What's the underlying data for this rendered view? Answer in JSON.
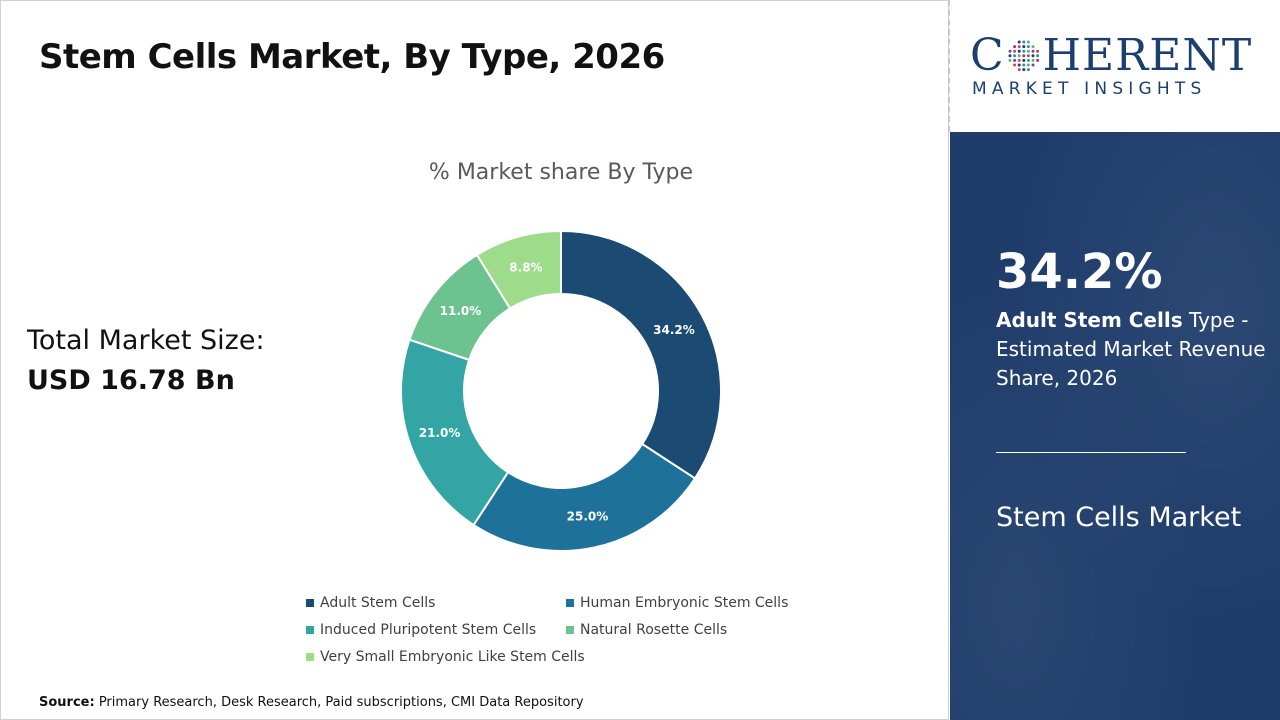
{
  "title": "Stem Cells Market, By Type, 2026",
  "total": {
    "label": "Total Market Size:",
    "value": "USD 16.78 Bn"
  },
  "source": {
    "label": "Source:",
    "text": " Primary Research, Desk Research, Paid subscriptions, CMI Data Repository"
  },
  "logo": {
    "word_pre": "C",
    "word_post": "HERENT",
    "sub": "MARKET INSIGHTS"
  },
  "highlight": {
    "value": "34.2%",
    "segment": "Adult Stem Cells",
    "desc_rest": " Type - Estimated Market Revenue Share, 2026",
    "market": "Stem Cells Market"
  },
  "colors": {
    "title_text": "#111111",
    "panel_bg": "#1f3c6b",
    "logo": "#1c3f6e"
  },
  "chart_data": {
    "type": "pie",
    "donut": true,
    "title": "% Market share By Type",
    "legend_position": "bottom",
    "slices": [
      {
        "name": "Adult Stem Cells",
        "value": 34.2,
        "label": "34.2%",
        "color": "#1b4a73"
      },
      {
        "name": "Human Embryonic Stem Cells",
        "value": 25.0,
        "label": "25.0%",
        "color": "#1e7299"
      },
      {
        "name": "Induced Pluripotent Stem Cells",
        "value": 21.0,
        "label": "21.0%",
        "color": "#34a5a5"
      },
      {
        "name": "Natural Rosette Cells",
        "value": 11.0,
        "label": "11.0%",
        "color": "#6cc38f"
      },
      {
        "name": "Very Small Embryonic Like Stem Cells",
        "value": 8.8,
        "label": "8.8%",
        "color": "#9ddc8a"
      }
    ]
  }
}
